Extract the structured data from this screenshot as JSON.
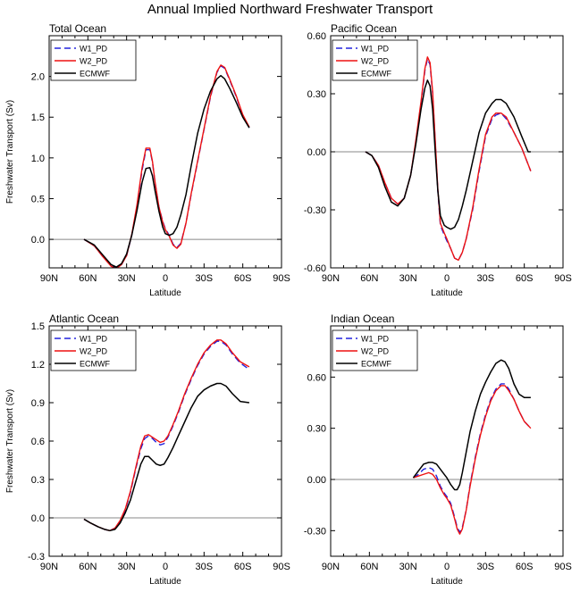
{
  "figure_title": "Annual Implied Northward Freshwater Transport",
  "colors": {
    "W1_PD": "#2222dd",
    "W2_PD": "#ee1111",
    "ECMWF": "#000000",
    "zero_line": "#888888",
    "frame": "#000000"
  },
  "chart_data": [
    {
      "id": "total",
      "type": "line",
      "title": "Total Ocean",
      "xlabel": "Latitude",
      "ylabel": "Freshwater Transport (Sv)",
      "xlim": [
        90,
        -90
      ],
      "ylim": [
        -0.35,
        2.5
      ],
      "x_ticks": [
        90,
        60,
        30,
        0,
        -30,
        -60,
        -90
      ],
      "x_tick_labels": [
        "90N",
        "60N",
        "30N",
        "0",
        "30S",
        "60S",
        "90S"
      ],
      "y_ticks": [
        0.0,
        0.5,
        1.0,
        1.5,
        2.0
      ],
      "y_tick_labels": [
        "0.0",
        "0.5",
        "1.0",
        "1.5",
        "2.0"
      ],
      "legend": [
        "W1_PD",
        "W2_PD",
        "ECMWF"
      ],
      "series": [
        {
          "name": "W1_PD",
          "x": [
            63,
            55,
            48,
            42,
            38,
            34,
            30,
            26,
            22,
            18,
            15,
            12,
            10,
            8,
            5,
            2,
            0,
            -3,
            -6,
            -9,
            -12,
            -16,
            -20,
            -25,
            -30,
            -35,
            -40,
            -43,
            -46,
            -50,
            -55,
            -60,
            -65
          ],
          "y": [
            0,
            -0.08,
            -0.22,
            -0.32,
            -0.35,
            -0.31,
            -0.2,
            0.05,
            0.4,
            0.85,
            1.1,
            1.1,
            0.95,
            0.7,
            0.4,
            0.22,
            0.13,
            0.05,
            -0.06,
            -0.1,
            -0.05,
            0.2,
            0.55,
            0.95,
            1.35,
            1.75,
            2.05,
            2.13,
            2.1,
            1.95,
            1.75,
            1.52,
            1.37
          ]
        },
        {
          "name": "W2_PD",
          "x": [
            63,
            55,
            48,
            42,
            38,
            34,
            30,
            26,
            22,
            18,
            15,
            12,
            10,
            8,
            5,
            2,
            0,
            -3,
            -6,
            -9,
            -12,
            -16,
            -20,
            -25,
            -30,
            -35,
            -40,
            -43,
            -46,
            -50,
            -55,
            -60,
            -65
          ],
          "y": [
            0,
            -0.08,
            -0.22,
            -0.33,
            -0.36,
            -0.31,
            -0.2,
            0.06,
            0.42,
            0.88,
            1.12,
            1.12,
            0.96,
            0.71,
            0.4,
            0.21,
            0.12,
            0.04,
            -0.07,
            -0.11,
            -0.06,
            0.2,
            0.56,
            0.96,
            1.36,
            1.76,
            2.06,
            2.14,
            2.11,
            1.96,
            1.76,
            1.53,
            1.38
          ]
        },
        {
          "name": "ECMWF",
          "x": [
            63,
            55,
            48,
            42,
            38,
            34,
            30,
            26,
            22,
            18,
            15,
            12,
            10,
            8,
            5,
            2,
            0,
            -3,
            -6,
            -9,
            -12,
            -16,
            -20,
            -25,
            -30,
            -35,
            -40,
            -43,
            -46,
            -50,
            -55,
            -60,
            -65
          ],
          "y": [
            0,
            -0.07,
            -0.2,
            -0.31,
            -0.34,
            -0.3,
            -0.18,
            0.05,
            0.35,
            0.7,
            0.87,
            0.88,
            0.78,
            0.6,
            0.35,
            0.15,
            0.07,
            0.05,
            0.07,
            0.15,
            0.3,
            0.55,
            0.9,
            1.3,
            1.6,
            1.82,
            1.97,
            2.01,
            1.97,
            1.85,
            1.68,
            1.5,
            1.37
          ]
        }
      ]
    },
    {
      "id": "pacific",
      "type": "line",
      "title": "Pacific Ocean",
      "xlabel": "Latitude",
      "ylabel": "",
      "xlim": [
        90,
        -90
      ],
      "ylim": [
        -0.6,
        0.6
      ],
      "x_ticks": [
        90,
        60,
        30,
        0,
        -30,
        -60,
        -90
      ],
      "x_tick_labels": [
        "90N",
        "60N",
        "30N",
        "0",
        "30S",
        "60S",
        "90S"
      ],
      "y_ticks": [
        -0.6,
        -0.3,
        0.0,
        0.3,
        0.6
      ],
      "y_tick_labels": [
        "-0.60",
        "-0.30",
        "0.00",
        "0.30",
        "0.60"
      ],
      "legend": [
        "W1_PD",
        "W2_PD",
        "ECMWF"
      ],
      "series": [
        {
          "name": "W1_PD",
          "x": [
            63,
            58,
            53,
            48,
            43,
            38,
            33,
            28,
            24,
            20,
            17,
            15,
            13,
            11,
            9,
            7,
            5,
            2,
            0,
            -3,
            -6,
            -9,
            -12,
            -15,
            -20,
            -25,
            -30,
            -35,
            -38,
            -42,
            -46,
            -52,
            -58,
            -65
          ],
          "y": [
            0,
            -0.02,
            -0.07,
            -0.16,
            -0.24,
            -0.27,
            -0.24,
            -0.12,
            0.05,
            0.25,
            0.42,
            0.48,
            0.45,
            0.3,
            0.05,
            -0.2,
            -0.38,
            -0.43,
            -0.46,
            -0.5,
            -0.55,
            -0.56,
            -0.52,
            -0.45,
            -0.3,
            -0.1,
            0.08,
            0.17,
            0.19,
            0.2,
            0.17,
            0.1,
            0.02,
            -0.1
          ]
        },
        {
          "name": "W2_PD",
          "x": [
            63,
            58,
            53,
            48,
            43,
            38,
            33,
            28,
            24,
            20,
            17,
            15,
            13,
            11,
            9,
            7,
            5,
            2,
            0,
            -3,
            -6,
            -9,
            -12,
            -15,
            -20,
            -25,
            -30,
            -35,
            -38,
            -42,
            -46,
            -52,
            -58,
            -65
          ],
          "y": [
            0,
            -0.02,
            -0.07,
            -0.16,
            -0.24,
            -0.27,
            -0.24,
            -0.12,
            0.06,
            0.26,
            0.43,
            0.49,
            0.46,
            0.31,
            0.06,
            -0.19,
            -0.37,
            -0.42,
            -0.45,
            -0.5,
            -0.55,
            -0.56,
            -0.52,
            -0.45,
            -0.29,
            -0.09,
            0.09,
            0.18,
            0.2,
            0.2,
            0.18,
            0.1,
            0.02,
            -0.1
          ]
        },
        {
          "name": "ECMWF",
          "x": [
            63,
            58,
            53,
            48,
            43,
            38,
            33,
            28,
            24,
            20,
            17,
            15,
            13,
            11,
            9,
            7,
            5,
            2,
            0,
            -3,
            -6,
            -9,
            -12,
            -15,
            -20,
            -25,
            -30,
            -35,
            -38,
            -42,
            -46,
            -52,
            -58,
            -63,
            -65
          ],
          "y": [
            0,
            -0.02,
            -0.08,
            -0.18,
            -0.26,
            -0.28,
            -0.24,
            -0.12,
            0.04,
            0.22,
            0.33,
            0.37,
            0.34,
            0.22,
            0.0,
            -0.2,
            -0.33,
            -0.38,
            -0.39,
            -0.4,
            -0.39,
            -0.35,
            -0.28,
            -0.2,
            -0.05,
            0.1,
            0.2,
            0.25,
            0.27,
            0.27,
            0.25,
            0.18,
            0.08,
            0.0,
            0.0
          ]
        }
      ]
    },
    {
      "id": "atlantic",
      "type": "line",
      "title": "Atlantic Ocean",
      "xlabel": "Latitude",
      "ylabel": "Freshwater Transport (Sv)",
      "xlim": [
        90,
        -90
      ],
      "ylim": [
        -0.3,
        1.5
      ],
      "x_ticks": [
        90,
        60,
        30,
        0,
        -30,
        -60,
        -90
      ],
      "x_tick_labels": [
        "90N",
        "60N",
        "30N",
        "0",
        "30S",
        "60S",
        "90S"
      ],
      "y_ticks": [
        -0.3,
        0.0,
        0.3,
        0.6,
        0.9,
        1.2,
        1.5
      ],
      "y_tick_labels": [
        "-0.3",
        "0.0",
        "0.3",
        "0.6",
        "0.9",
        "1.2",
        "1.5"
      ],
      "legend": [
        "W1_PD",
        "W2_PD",
        "ECMWF"
      ],
      "series": [
        {
          "name": "W1_PD",
          "x": [
            63,
            58,
            52,
            47,
            43,
            39,
            35,
            31,
            27,
            23,
            19,
            16,
            13,
            10,
            7,
            4,
            1,
            -2,
            -6,
            -10,
            -15,
            -20,
            -25,
            -30,
            -35,
            -40,
            -43,
            -47,
            -52,
            -58,
            -65
          ],
          "y": [
            -0.01,
            -0.04,
            -0.07,
            -0.09,
            -0.1,
            -0.08,
            -0.03,
            0.06,
            0.2,
            0.38,
            0.54,
            0.62,
            0.64,
            0.62,
            0.59,
            0.57,
            0.58,
            0.63,
            0.72,
            0.82,
            0.96,
            1.08,
            1.19,
            1.28,
            1.34,
            1.38,
            1.38,
            1.35,
            1.28,
            1.21,
            1.16
          ]
        },
        {
          "name": "W2_PD",
          "x": [
            63,
            58,
            52,
            47,
            43,
            39,
            35,
            31,
            27,
            23,
            19,
            16,
            13,
            10,
            7,
            4,
            1,
            -2,
            -6,
            -10,
            -15,
            -20,
            -25,
            -30,
            -35,
            -40,
            -43,
            -47,
            -52,
            -58,
            -65
          ],
          "y": [
            -0.01,
            -0.04,
            -0.07,
            -0.09,
            -0.1,
            -0.08,
            -0.02,
            0.07,
            0.21,
            0.39,
            0.56,
            0.64,
            0.65,
            0.63,
            0.61,
            0.59,
            0.6,
            0.64,
            0.73,
            0.83,
            0.97,
            1.09,
            1.2,
            1.29,
            1.35,
            1.39,
            1.39,
            1.36,
            1.29,
            1.22,
            1.18
          ]
        },
        {
          "name": "ECMWF",
          "x": [
            63,
            58,
            52,
            47,
            43,
            39,
            35,
            31,
            27,
            23,
            19,
            16,
            13,
            10,
            7,
            4,
            1,
            -2,
            -6,
            -10,
            -15,
            -20,
            -25,
            -30,
            -35,
            -40,
            -43,
            -47,
            -52,
            -58,
            -65
          ],
          "y": [
            -0.01,
            -0.04,
            -0.07,
            -0.09,
            -0.1,
            -0.09,
            -0.04,
            0.04,
            0.14,
            0.28,
            0.42,
            0.48,
            0.48,
            0.45,
            0.42,
            0.41,
            0.42,
            0.47,
            0.55,
            0.64,
            0.75,
            0.86,
            0.95,
            1.0,
            1.03,
            1.05,
            1.05,
            1.03,
            0.97,
            0.91,
            0.9
          ]
        }
      ]
    },
    {
      "id": "indian",
      "type": "line",
      "title": "Indian Ocean",
      "xlabel": "Latitude",
      "ylabel": "",
      "xlim": [
        90,
        -90
      ],
      "ylim": [
        -0.45,
        0.9
      ],
      "x_ticks": [
        90,
        60,
        30,
        0,
        -30,
        -60,
        -90
      ],
      "x_tick_labels": [
        "90N",
        "60N",
        "30N",
        "0",
        "30S",
        "60S",
        "90S"
      ],
      "y_ticks": [
        -0.3,
        0.0,
        0.3,
        0.6
      ],
      "y_tick_labels": [
        "-0.30",
        "0.00",
        "0.30",
        "0.60"
      ],
      "legend": [
        "W1_PD",
        "W2_PD",
        "ECMWF"
      ],
      "series": [
        {
          "name": "W1_PD",
          "x": [
            26,
            22,
            18,
            14,
            11,
            8,
            5,
            2,
            0,
            -3,
            -6,
            -8,
            -10,
            -12,
            -15,
            -18,
            -22,
            -26,
            -30,
            -34,
            -38,
            -42,
            -45,
            -48,
            -52,
            -56,
            -60,
            -65
          ],
          "y": [
            0.01,
            0.03,
            0.06,
            0.07,
            0.06,
            0.02,
            -0.04,
            -0.08,
            -0.1,
            -0.14,
            -0.22,
            -0.28,
            -0.31,
            -0.28,
            -0.18,
            -0.03,
            0.13,
            0.27,
            0.38,
            0.47,
            0.53,
            0.56,
            0.56,
            0.53,
            0.47,
            0.4,
            0.34,
            0.3
          ]
        },
        {
          "name": "W2_PD",
          "x": [
            26,
            22,
            18,
            14,
            11,
            8,
            5,
            2,
            0,
            -3,
            -6,
            -8,
            -10,
            -12,
            -15,
            -18,
            -22,
            -26,
            -30,
            -34,
            -38,
            -42,
            -45,
            -48,
            -52,
            -56,
            -60,
            -65
          ],
          "y": [
            0.01,
            0.02,
            0.03,
            0.04,
            0.03,
            0.0,
            -0.05,
            -0.09,
            -0.11,
            -0.15,
            -0.23,
            -0.29,
            -0.32,
            -0.29,
            -0.18,
            -0.04,
            0.12,
            0.26,
            0.37,
            0.46,
            0.52,
            0.55,
            0.55,
            0.52,
            0.47,
            0.4,
            0.34,
            0.3
          ]
        },
        {
          "name": "ECMWF",
          "x": [
            26,
            22,
            18,
            14,
            11,
            8,
            5,
            2,
            0,
            -3,
            -6,
            -8,
            -10,
            -12,
            -15,
            -18,
            -22,
            -26,
            -30,
            -34,
            -38,
            -42,
            -45,
            -48,
            -52,
            -56,
            -60,
            -65
          ],
          "y": [
            0.01,
            0.05,
            0.09,
            0.1,
            0.1,
            0.09,
            0.06,
            0.03,
            0.01,
            -0.03,
            -0.06,
            -0.06,
            -0.03,
            0.04,
            0.16,
            0.28,
            0.4,
            0.5,
            0.57,
            0.63,
            0.68,
            0.7,
            0.69,
            0.65,
            0.56,
            0.5,
            0.48,
            0.48
          ]
        }
      ]
    }
  ]
}
